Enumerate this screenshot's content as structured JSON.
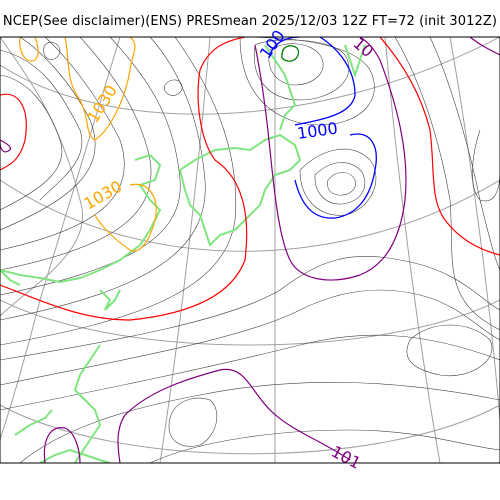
{
  "title": "NCEP(See disclaimer)(ENS) PRESmean 2025/12/03 12Z FT=72 (init 3012Z)",
  "colors": {
    "background": "#ffffff",
    "grid": "#a0a0a0",
    "isobar_thin": "#444444",
    "coast": "#7fe57f",
    "isobar_1030": "#ffa500",
    "isobar_1000": "#0000ff",
    "isobar_1010": "#800080",
    "isobar_1020": "#ff0000",
    "isobar_990": "#008000"
  },
  "labels": {
    "l1030_a": "1030",
    "l1030_b": "1030",
    "l1000": "1000",
    "l100_partial": "100",
    "l10_partial": "10",
    "l101_partial": "101"
  }
}
